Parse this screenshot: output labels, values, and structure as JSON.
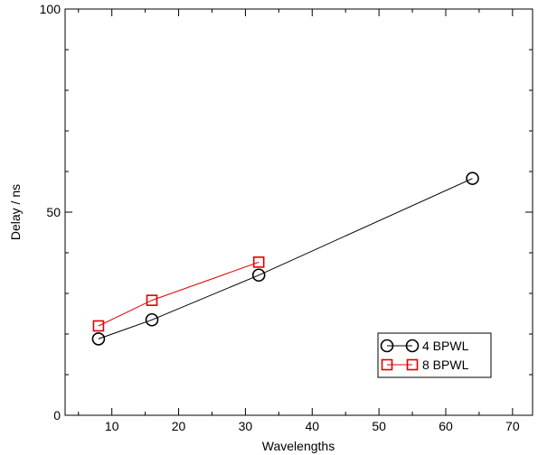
{
  "chart_data": {
    "type": "line",
    "title": "",
    "xlabel": "Wavelengths",
    "ylabel": "Delay / ns",
    "xlim": [
      3,
      73
    ],
    "ylim": [
      0,
      100
    ],
    "x_major_ticks": [
      10,
      20,
      30,
      40,
      50,
      60,
      70
    ],
    "x_tick_labels": [
      "10",
      "20",
      "30",
      "40",
      "50",
      "60",
      "70"
    ],
    "x_minor_ticks": [
      5,
      15,
      25,
      35,
      45,
      55,
      65
    ],
    "y_major_ticks": [
      0,
      50,
      100
    ],
    "y_tick_labels": [
      "0",
      "50",
      "100"
    ],
    "y_minor_ticks": [
      10,
      20,
      30,
      40,
      60,
      70,
      80,
      90
    ],
    "grid": false,
    "legend_position": "bottom-right",
    "series": [
      {
        "name": "4 BPWL",
        "color": "#000000",
        "marker": "circle",
        "x": [
          8,
          16,
          32,
          64
        ],
        "y": [
          18.8,
          23.5,
          34.5,
          58.3
        ]
      },
      {
        "name": "8 BPWL",
        "color": "#e00000",
        "marker": "square",
        "x": [
          8,
          16,
          32
        ],
        "y": [
          22.0,
          28.3,
          37.7
        ]
      }
    ]
  }
}
